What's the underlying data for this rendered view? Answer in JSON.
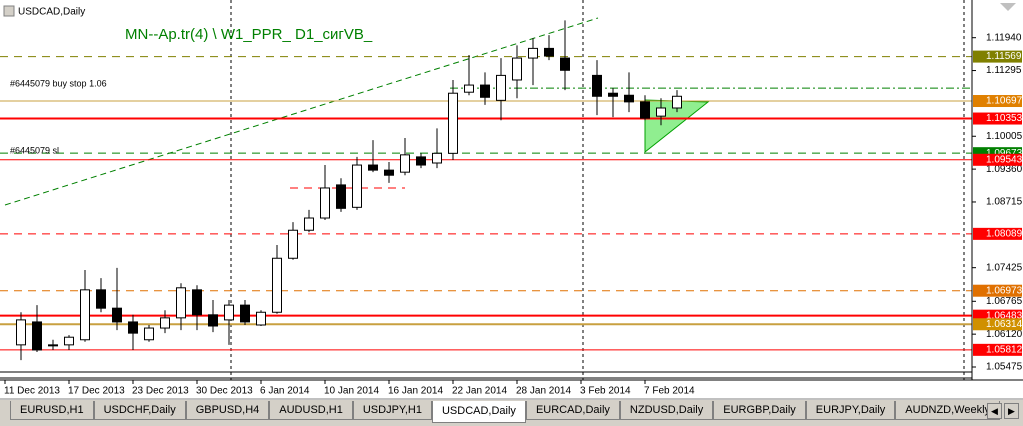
{
  "chart_data": {
    "type": "candlestick",
    "title": "USDCAD,Daily",
    "indicator_label": "MN--Ap.tr(4) \\ W1_PPR_  D1_сигVB_",
    "annotations": [
      "#6445079 buy stop 1.06",
      "#6445079 sl"
    ],
    "categories": [
      "11 Dec 2013",
      null,
      null,
      null,
      "17 Dec 2013",
      null,
      null,
      null,
      "23 Dec 2013",
      null,
      null,
      null,
      "30 Dec 2013",
      null,
      null,
      null,
      "6 Jan 2014",
      null,
      null,
      null,
      "10 Jan 2014",
      null,
      null,
      null,
      "16 Jan 2014",
      null,
      null,
      null,
      "22 Jan 2014",
      null,
      null,
      null,
      "28 Jan 2014",
      null,
      null,
      null,
      "3 Feb 2014",
      null,
      null,
      null,
      "7 Feb 2014",
      null,
      null
    ],
    "open": [
      null,
      1.0591,
      1.0636,
      1.0591,
      1.0591,
      1.0601,
      1.0699,
      1.0663,
      1.0636,
      1.0601,
      1.0624,
      1.0644,
      1.0699,
      1.065,
      1.064,
      1.0669,
      1.063,
      1.0655,
      1.0761,
      1.0816,
      1.084,
      1.0905,
      1.0861,
      1.0944,
      1.0934,
      1.093,
      1.096,
      1.0948,
      1.0967,
      1.1087,
      1.1101,
      1.1071,
      1.1111,
      1.1154,
      1.1173,
      1.1154,
      null,
      1.112,
      1.1085,
      1.1081,
      1.1068,
      1.104,
      1.1056
    ],
    "high": [
      null,
      1.0655,
      1.0669,
      1.0601,
      1.061,
      1.0738,
      1.0722,
      1.0742,
      1.065,
      1.063,
      1.0659,
      1.0712,
      1.0708,
      1.0679,
      1.0679,
      1.0679,
      1.0659,
      1.0787,
      1.0832,
      1.0856,
      1.0944,
      1.0918,
      1.096,
      1.0993,
      1.095,
      1.0997,
      1.0967,
      1.1016,
      1.1111,
      1.116,
      1.1126,
      1.1154,
      1.1179,
      1.1193,
      1.1199,
      1.1228,
      null,
      1.115,
      1.1095,
      1.1126,
      1.1081,
      1.1075,
      1.1091
    ],
    "low": [
      null,
      1.0561,
      1.0577,
      1.0581,
      1.0581,
      1.0597,
      1.0655,
      1.062,
      1.0581,
      1.0597,
      1.0614,
      1.062,
      1.062,
      1.0616,
      1.0591,
      1.063,
      1.0628,
      1.0652,
      1.0758,
      1.0812,
      1.0836,
      1.0852,
      1.0856,
      1.093,
      1.0909,
      1.0924,
      1.0938,
      1.0938,
      1.0954,
      1.1081,
      1.1062,
      1.1032,
      1.1075,
      1.1101,
      1.115,
      1.1091,
      null,
      1.1042,
      1.1038,
      1.1048,
      1.1032,
      1.1022,
      1.1048
    ],
    "close": [
      null,
      1.064,
      1.0581,
      1.059,
      1.0606,
      1.0699,
      1.0663,
      1.0636,
      1.0614,
      1.0624,
      1.0644,
      1.0703,
      1.065,
      1.0628,
      1.0669,
      1.0636,
      1.0655,
      1.0761,
      1.0816,
      1.084,
      1.0899,
      1.0859,
      1.0944,
      1.0934,
      1.0924,
      1.0964,
      1.0944,
      1.0967,
      1.1085,
      1.1101,
      1.1077,
      1.112,
      1.1154,
      1.1173,
      1.1158,
      1.113,
      null,
      1.1079,
      1.1079,
      1.1068,
      1.1036,
      1.1056,
      1.1079
    ],
    "up_color": "#ffffff",
    "down_color": "#000000",
    "ylim": [
      1.0522,
      1.1268
    ],
    "yticks": [
      {
        "value": 1.1194,
        "label": "1.11940"
      },
      1.11295,
      1.10005,
      {
        "value": 1.0936,
        "label": "1.09360"
      },
      1.08715,
      1.07425,
      1.06765,
      {
        "value": 1.0612,
        "label": "1.06120"
      },
      1.05475
    ],
    "levels": [
      {
        "value": 1.11569,
        "color": "#808000",
        "box": "#808000",
        "style": "dashed"
      },
      {
        "value": 1.10697,
        "color": "#c8a040",
        "box": "#e08000",
        "style": "solid"
      },
      {
        "value": 1.10353,
        "color": "#ff0000",
        "box": "#ff0000",
        "style": "thick"
      },
      {
        "value": 1.09673,
        "color": "#008000",
        "box": "#008000",
        "style": "dashed"
      },
      {
        "value": 1.09543,
        "color": "#ff0000",
        "box": "#ff0000",
        "style": "solid"
      },
      {
        "value": 1.08089,
        "color": "#ff0000",
        "box": "#ff0000",
        "style": "dashed"
      },
      {
        "value": 1.06973,
        "color": "#e07000",
        "box": "#e07000",
        "style": "dashed"
      },
      {
        "value": 1.06483,
        "color": "#ff0000",
        "box": "#ff0000",
        "style": "thick"
      },
      {
        "value": 1.06314,
        "color": "#c8a040",
        "box": "#d09000",
        "style": "thick"
      },
      {
        "value": 1.05812,
        "color": "#ff0000",
        "box": "#ff0000",
        "style": "solid"
      }
    ],
    "lines": [
      {
        "value": 1.1095,
        "color": "#008000",
        "style": "dashdot"
      },
      {
        "value": 1.0899,
        "color": "#ff0000",
        "style": "dashed"
      }
    ]
  },
  "tabs": [
    "EURUSD,H1",
    "USDCHF,Daily",
    "GBPUSD,H4",
    "AUDUSD,H1",
    "USDJPY,H1",
    "USDCAD,Daily",
    "EURCAD,Daily",
    "NZDUSD,Daily",
    "EURGBP,Daily",
    "EURJPY,Daily",
    "AUDNZD,Weekly"
  ],
  "active_tab": 5
}
